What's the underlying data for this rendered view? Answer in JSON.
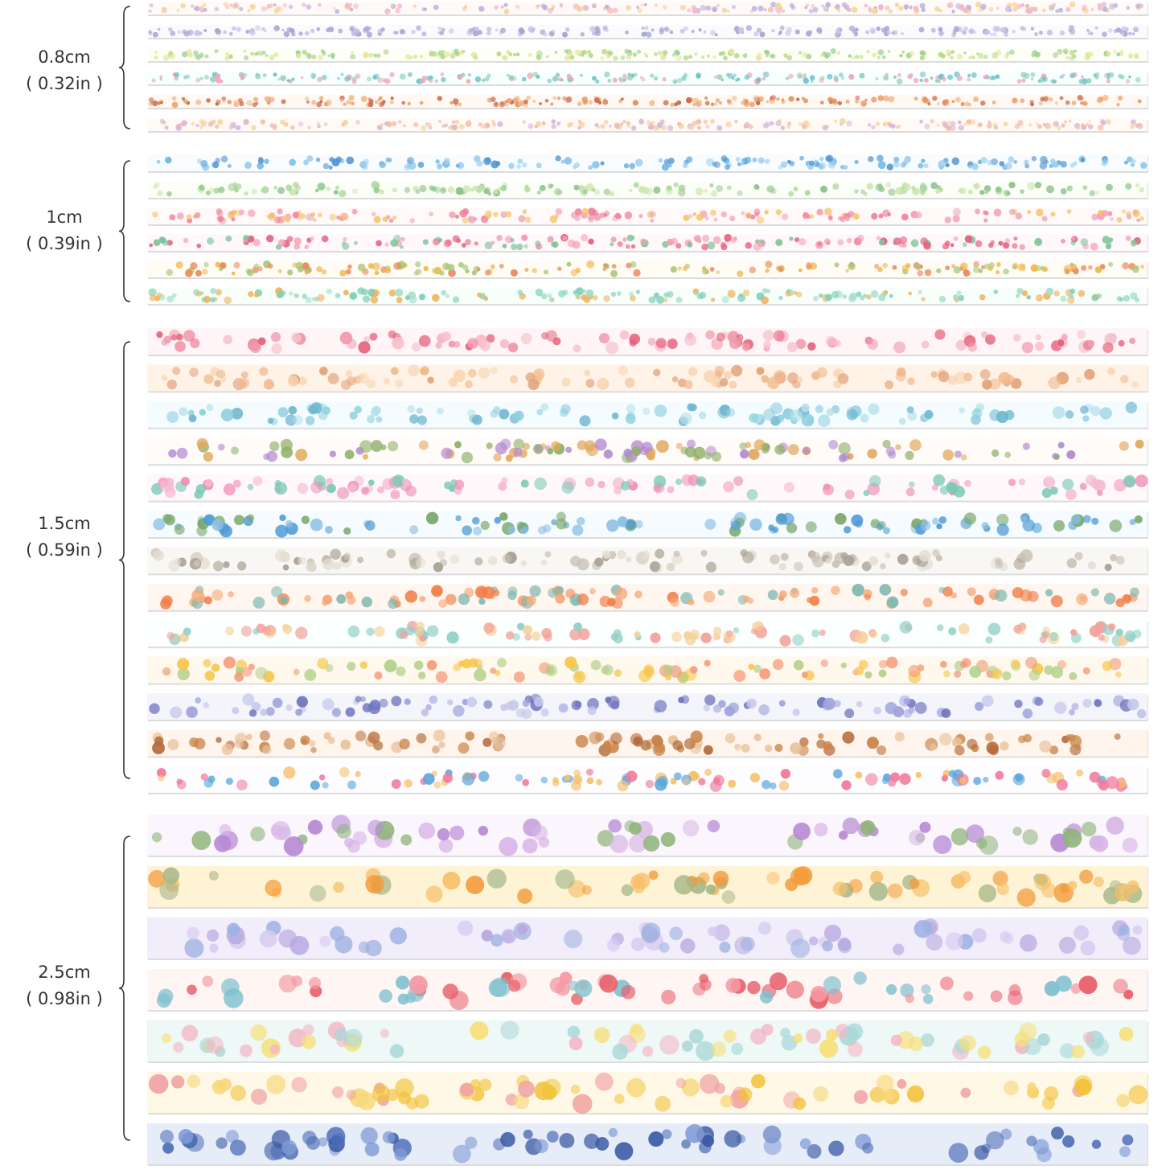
{
  "groups": [
    {
      "width": "0.8cm",
      "inches": "( 0.32in )"
    },
    {
      "width": "1cm",
      "inches": "( 0.39in )"
    },
    {
      "width": "1.5cm",
      "inches": "( 0.59in )"
    },
    {
      "width": "2.5cm",
      "inches": "( 0.98in )"
    }
  ]
}
